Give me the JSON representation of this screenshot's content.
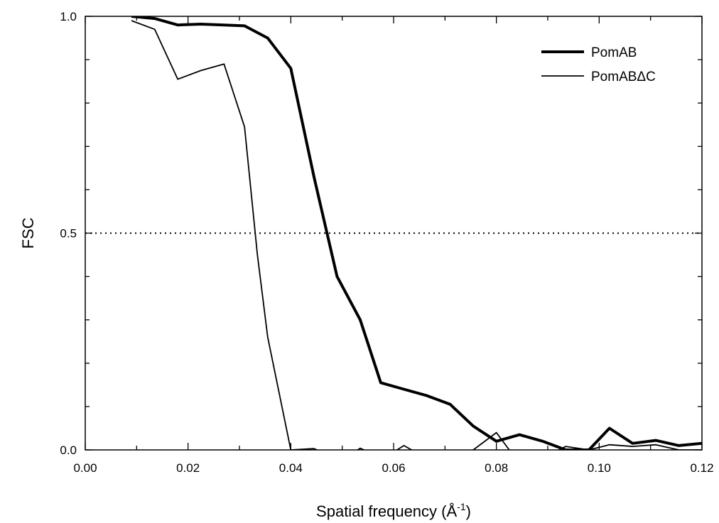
{
  "chart_data": {
    "type": "line",
    "xlabel": "Spatial frequency (Å",
    "xlabel_superscript": "-1",
    "xlabel_suffix": ")",
    "ylabel": "FSC",
    "xlim": [
      0.0,
      0.12
    ],
    "ylim": [
      0.0,
      1.0
    ],
    "x_ticks": [
      0.0,
      0.02,
      0.04,
      0.06,
      0.08,
      0.1,
      0.12
    ],
    "x_tick_labels": [
      "0.00",
      "0.02",
      "0.04",
      "0.06",
      "0.08",
      "0.10",
      "0.12"
    ],
    "x_minor_ticks": [
      0.01,
      0.03,
      0.05,
      0.07,
      0.09,
      0.11
    ],
    "y_ticks": [
      0.0,
      0.5,
      1.0
    ],
    "y_tick_labels": [
      "0.0",
      "0.5",
      "1.0"
    ],
    "y_minor_ticks": [
      0.1,
      0.2,
      0.3,
      0.4,
      0.6,
      0.7,
      0.8,
      0.9
    ],
    "grid": false,
    "legend_position": "top-right",
    "reference_line": {
      "y": 0.5,
      "style": "dotted",
      "color": "#000000"
    },
    "series": [
      {
        "name": "PomAB",
        "line_style": "thick",
        "color": "#000000",
        "x": [
          0.009,
          0.0135,
          0.018,
          0.0225,
          0.027,
          0.031,
          0.0355,
          0.04,
          0.0445,
          0.049,
          0.0535,
          0.0575,
          0.062,
          0.0665,
          0.071,
          0.0755,
          0.08,
          0.0845,
          0.089,
          0.0935,
          0.098,
          0.102,
          0.1065,
          0.111,
          0.1155,
          0.12
        ],
        "y": [
          1.0,
          0.995,
          0.98,
          0.982,
          0.98,
          0.978,
          0.95,
          0.88,
          0.63,
          0.4,
          0.3,
          0.155,
          0.14,
          0.125,
          0.105,
          0.055,
          0.02,
          0.035,
          0.02,
          0.0,
          0.0,
          0.05,
          0.015,
          0.022,
          0.01,
          0.015
        ]
      },
      {
        "name": "PomABΔC",
        "line_style": "thin",
        "color": "#000000",
        "x": [
          0.009,
          0.0135,
          0.018,
          0.0225,
          0.027,
          0.031,
          0.0335,
          0.0355,
          0.04,
          0.0445,
          0.049,
          0.053,
          0.0535,
          0.058,
          0.062,
          0.0665,
          0.071,
          0.0755,
          0.08,
          0.0825,
          0.0845,
          0.089,
          0.0935,
          0.098,
          0.102,
          0.1065,
          0.111,
          0.1155,
          0.12
        ],
        "y": [
          0.99,
          0.97,
          0.855,
          0.875,
          0.89,
          0.745,
          0.45,
          0.26,
          0.0,
          0.003,
          -0.02,
          0.0,
          0.004,
          -0.02,
          0.01,
          -0.02,
          -0.02,
          0.0,
          0.04,
          0.0,
          -0.02,
          -0.02,
          0.008,
          0.0,
          0.012,
          0.008,
          0.012,
          0.0,
          0.0
        ]
      }
    ]
  }
}
